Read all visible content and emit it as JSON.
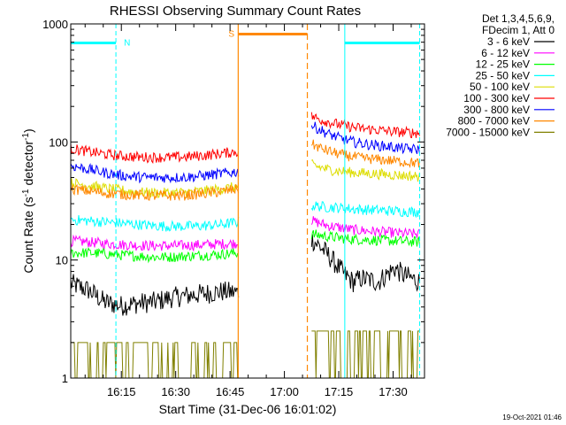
{
  "chart_data": {
    "type": "line",
    "title": "RHESSI Observing Summary Count Rates",
    "xlabel": "Start Time (31-Dec-06 16:01:02)",
    "ylabel_main": "Count Rate (s",
    "ylabel_sup1": "-1",
    "ylabel_mid": " detector",
    "ylabel_sup2": "-1",
    "ylabel_end": ")",
    "y_scale": "log",
    "ylim": [
      1,
      1000
    ],
    "xlim": [
      "16:01:02",
      "17:38:40"
    ],
    "x_ticks": [
      "16:15",
      "16:30",
      "16:45",
      "17:00",
      "17:15",
      "17:30"
    ],
    "y_ticks": [
      "1",
      "10",
      "100",
      "1000"
    ],
    "legend_placement": "outside right",
    "legend_header": [
      "Det 1,3,4,5,6,9,",
      "FDecim 1, Att 0"
    ],
    "series": [
      {
        "name": "3 - 6 keV",
        "color": "#000000",
        "seg1": [
          6.3,
          5.6,
          4.4,
          4.1,
          4.3,
          4.4,
          4.8,
          5.0,
          5.2,
          5.4,
          5.3
        ],
        "seg2": [
          15.0,
          13.0,
          11.0,
          9.0,
          7.5,
          6.5,
          7.0,
          6.8,
          6.5,
          7.5,
          8.5,
          7.5,
          7.0,
          6.5
        ]
      },
      {
        "name": "6 - 12 keV",
        "color": "#ff00ff",
        "seg1": [
          14.5,
          14.2,
          13.8,
          13.5,
          13.3,
          13.2,
          13.2,
          13.3,
          13.5,
          13.7,
          13.9
        ],
        "seg2": [
          21.5,
          20.5,
          19.5,
          19.0,
          18.5,
          18.0,
          17.8,
          17.6,
          17.4,
          17.2,
          17.0,
          16.8,
          16.7,
          16.6
        ]
      },
      {
        "name": "12 - 25 keV",
        "color": "#00ff00",
        "seg1": [
          11.5,
          11.5,
          11.3,
          11.0,
          10.8,
          10.6,
          10.6,
          10.8,
          11.0,
          11.2,
          11.5
        ],
        "seg2": [
          16.5,
          16.2,
          15.8,
          15.5,
          15.2,
          15.0,
          14.9,
          14.8,
          14.7,
          14.6,
          14.5,
          14.4,
          14.3,
          14.2
        ]
      },
      {
        "name": "25 - 50 keV",
        "color": "#00ffff",
        "seg1": [
          22.0,
          21.5,
          21.0,
          20.5,
          20.0,
          19.5,
          19.3,
          19.3,
          19.5,
          20.0,
          21.0
        ],
        "seg2": [
          29.0,
          28.5,
          28.0,
          27.8,
          27.5,
          27.0,
          26.8,
          26.6,
          26.4,
          26.2,
          26.0,
          25.8,
          25.7,
          25.6
        ]
      },
      {
        "name": "50 - 100 keV",
        "color": "#dddd00",
        "seg1": [
          45.0,
          43.0,
          40.5,
          39.0,
          37.5,
          37.0,
          37.0,
          37.5,
          38.5,
          40.0,
          42.0
        ],
        "seg2": [
          64.0,
          61.0,
          58.5,
          57.0,
          56.0,
          55.0,
          54.5,
          54.0,
          53.5,
          53.0,
          52.5,
          52.0,
          51.5,
          51.0
        ]
      },
      {
        "name": "100 - 300 keV",
        "color": "#ff0000",
        "seg1": [
          88.0,
          83.0,
          79.0,
          76.0,
          74.5,
          74.0,
          74.0,
          75.0,
          77.0,
          80.0,
          83.0
        ],
        "seg2": [
          165.0,
          155.0,
          148.0,
          142.0,
          137.0,
          133.0,
          130.0,
          128.0,
          126.0,
          124.0,
          122.0,
          121.0,
          120.0,
          119.0
        ]
      },
      {
        "name": "300 - 800 keV",
        "color": "#0000ff",
        "seg1": [
          63.0,
          59.0,
          55.0,
          52.0,
          50.5,
          50.0,
          50.0,
          50.5,
          52.0,
          54.0,
          56.0
        ],
        "seg2": [
          138.0,
          127.0,
          117.0,
          110.0,
          104.0,
          100.0,
          97.0,
          95.0,
          93.0,
          92.0,
          90.0,
          88.0,
          87.0,
          86.0
        ]
      },
      {
        "name": "800 - 7000 keV",
        "color": "#ff8800",
        "seg1": [
          40.0,
          38.5,
          37.0,
          36.0,
          35.5,
          35.0,
          35.0,
          35.5,
          36.5,
          38.0,
          40.0
        ],
        "seg2": [
          96.0,
          89.0,
          84.0,
          80.0,
          77.0,
          75.0,
          73.0,
          72.0,
          71.0,
          70.0,
          69.0,
          68.0,
          67.0,
          66.0
        ]
      },
      {
        "name": "7000 - 15000 keV",
        "color": "#808000",
        "seg1_low": 1.0,
        "seg1_high": 2.0,
        "seg2_low": 1.0,
        "seg2_high": 2.5
      }
    ],
    "segment_times": {
      "seg1": [
        "16:01:02",
        "16:47:20"
      ],
      "seg2": [
        "17:07:30",
        "17:37:20"
      ]
    },
    "attenuator_marks": [
      {
        "time": "16:47:15",
        "color": "#ff8800",
        "style": "solid"
      },
      {
        "time": "17:06:20",
        "color": "#ff8800",
        "style": "dashed"
      }
    ],
    "saa_bar": {
      "label": "S",
      "from": "16:47:15",
      "to": "17:06:20",
      "value": 820,
      "color": "#ff8800"
    },
    "night_marks": [
      {
        "time": "16:01:02",
        "style": "solid"
      },
      {
        "time": "16:13:30",
        "style": "dashed"
      },
      {
        "time": "17:16:40",
        "style": "solid"
      },
      {
        "time": "17:37:20",
        "style": "dashed"
      }
    ],
    "night_bars": [
      {
        "label": "N",
        "from": "16:01:02",
        "to": "16:13:30",
        "value": 690
      },
      {
        "label": "",
        "from": "17:16:40",
        "to": "17:37:20",
        "value": 690
      }
    ],
    "night_color": "#00ffff"
  },
  "timestamp": "19-Oct-2021 01:46"
}
